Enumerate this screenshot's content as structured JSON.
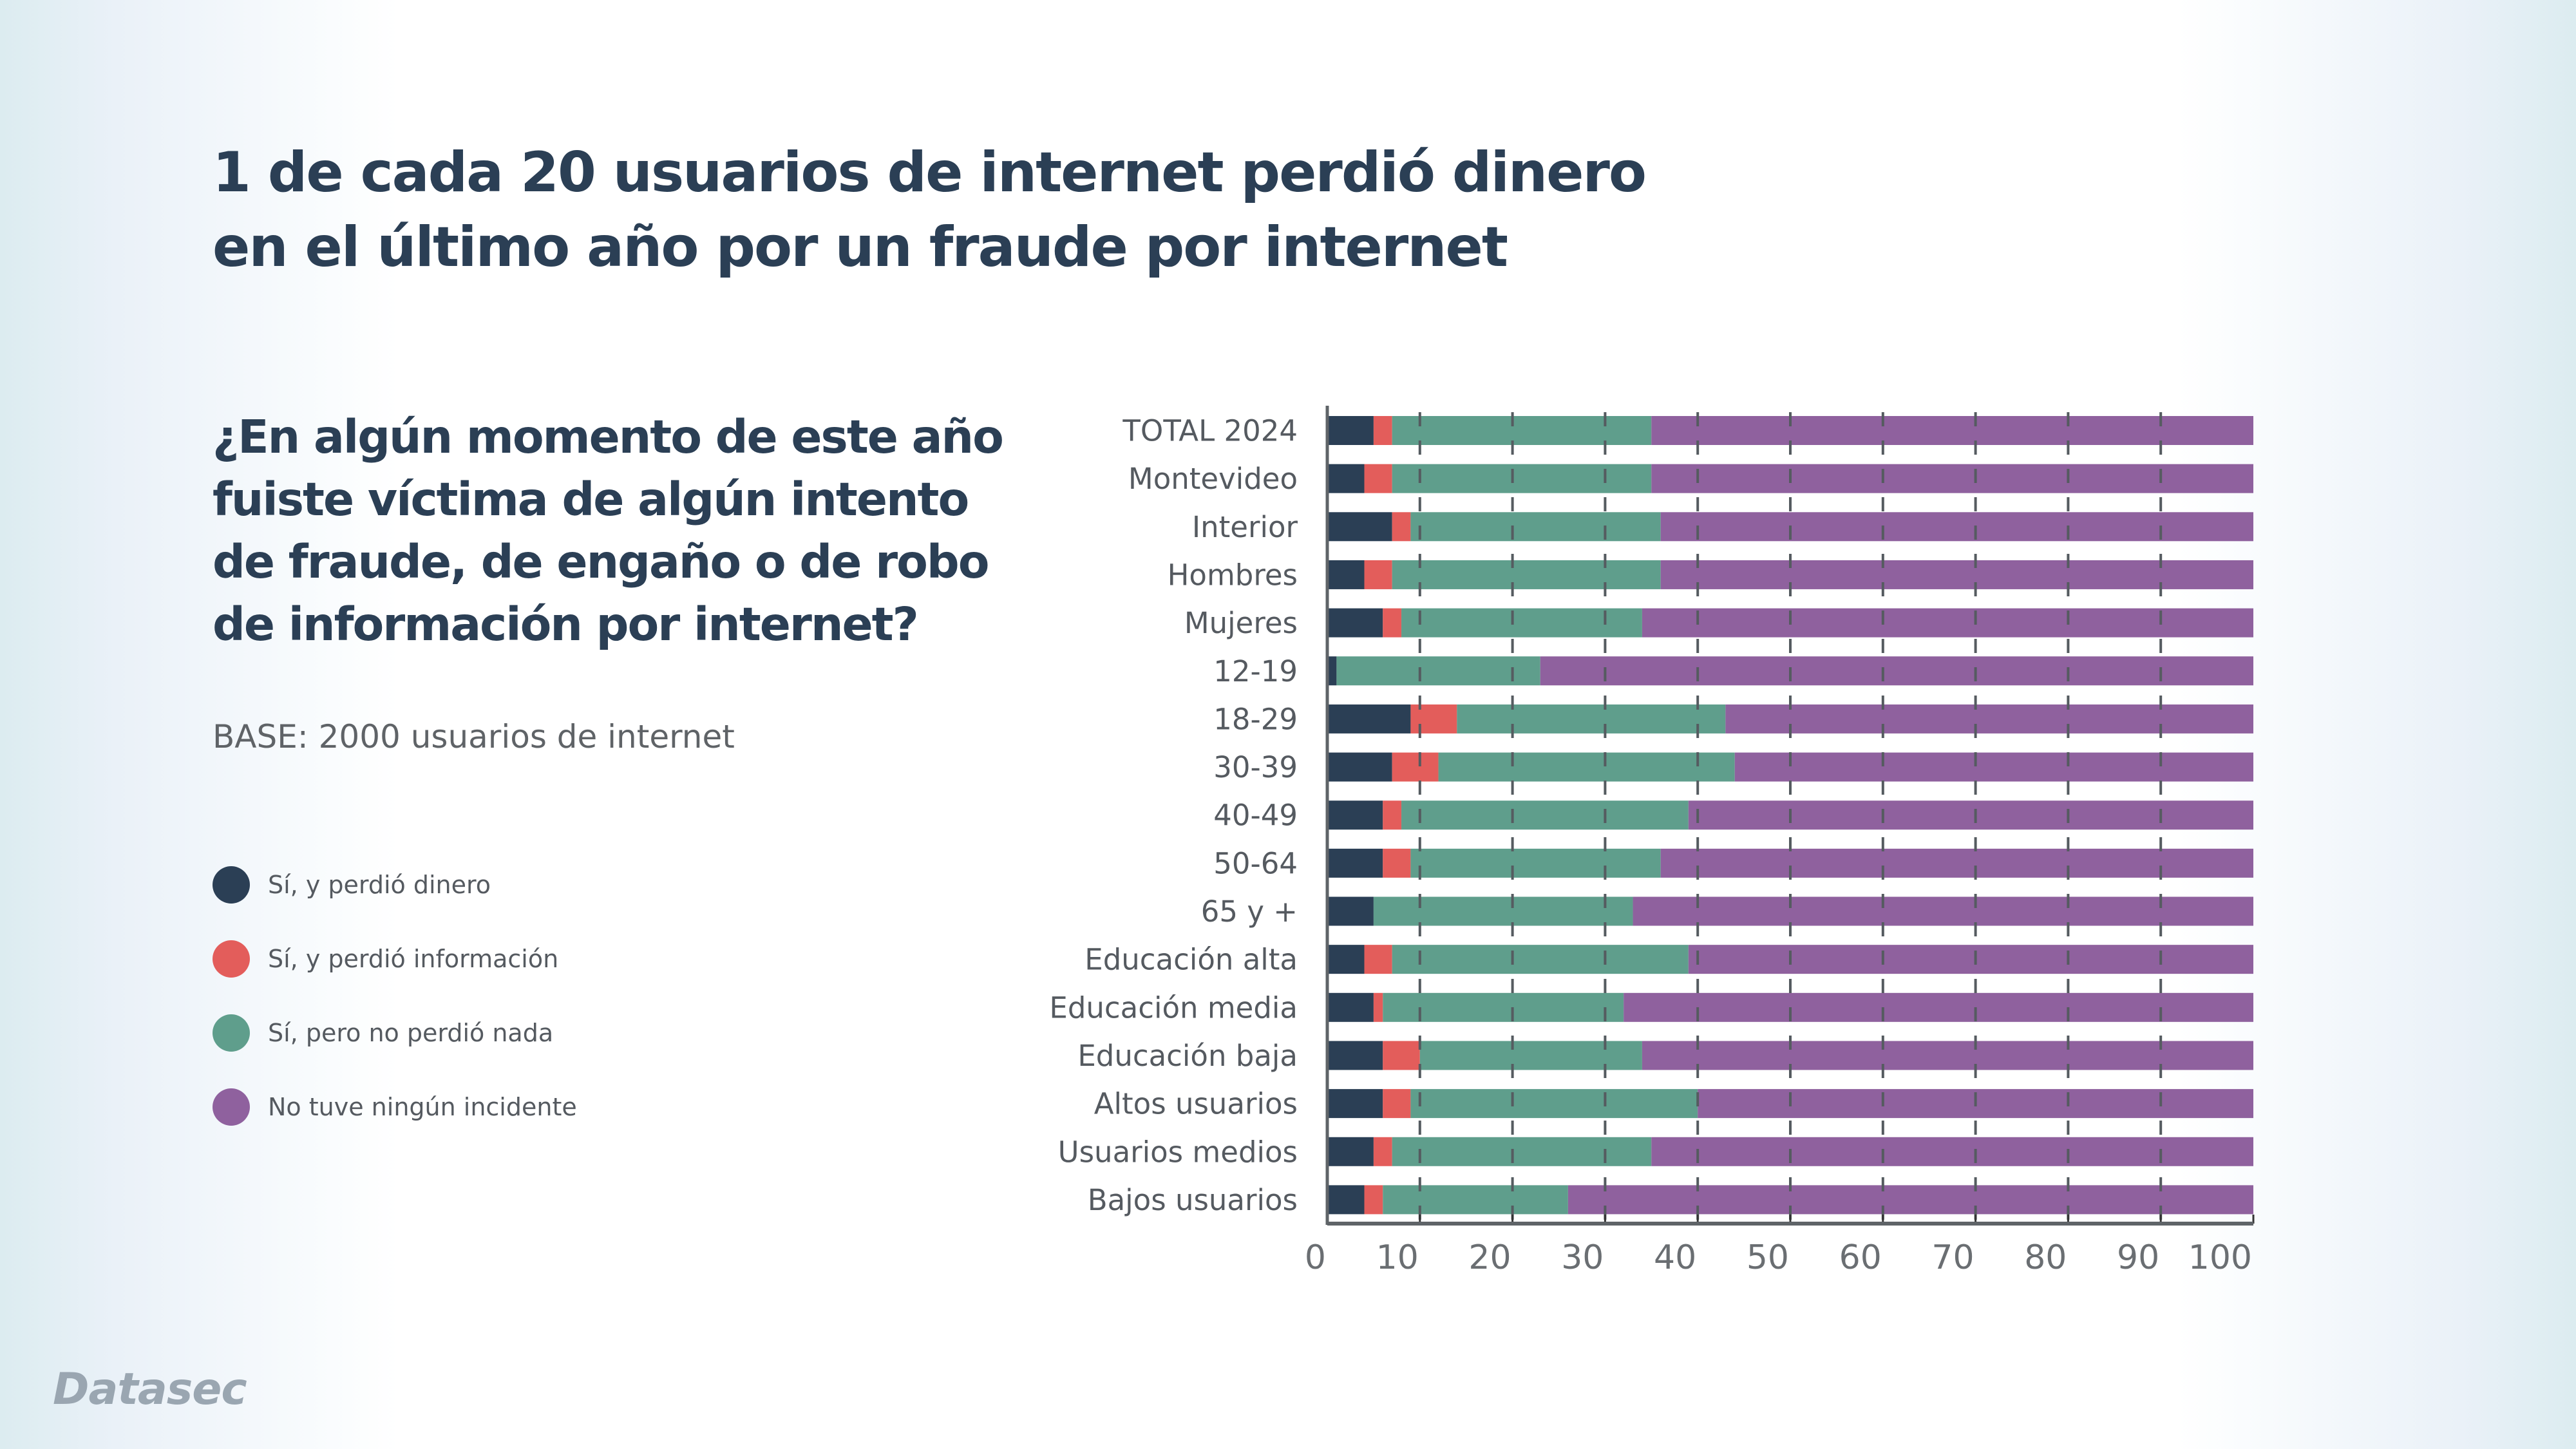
{
  "header": {
    "title_lines": [
      "1 de cada 20 usuarios de internet perdió dinero",
      "en el último año por un fraude por internet"
    ]
  },
  "question": {
    "lines": [
      "¿En algún momento de este año",
      "fuiste víctima de algún intento",
      "de fraude, de engaño o de robo",
      "de información por internet?"
    ]
  },
  "base_note": "BASE: 2000 usuarios de internet",
  "brand": {
    "logo_text": "Datasec"
  },
  "chart_data": {
    "type": "bar",
    "orientation": "horizontal",
    "stacked": true,
    "title": "¿En algún momento de este año fuiste víctima de algún intento de fraude, de engaño o de robo de información por internet?",
    "xlabel": "",
    "ylabel": "",
    "xlim": [
      0,
      100
    ],
    "xticks": [
      "0",
      "10",
      "20",
      "30",
      "40",
      "50",
      "60",
      "70",
      "80",
      "90",
      "100"
    ],
    "grid": "vertical dashed",
    "legend_position": "left",
    "categories": [
      "TOTAL 2024",
      "Montevideo",
      "Interior",
      "Hombres",
      "Mujeres",
      "12-19",
      "18-29",
      "30-39",
      "40-49",
      "50-64",
      "65 y +",
      "Educación alta",
      "Educación media",
      "Educación baja",
      "Altos usuarios",
      "Usuarios medios",
      "Bajos usuarios"
    ],
    "series": [
      {
        "name": "Sí, y perdió dinero",
        "color": "#2b3f55",
        "values": [
          5,
          4,
          7,
          4,
          6,
          1,
          9,
          7,
          6,
          6,
          5,
          4,
          5,
          6,
          6,
          5,
          4
        ]
      },
      {
        "name": "Sí, y perdió información",
        "color": "#e35d5b",
        "values": [
          2,
          3,
          2,
          3,
          2,
          0,
          5,
          5,
          2,
          3,
          0,
          3,
          1,
          4,
          3,
          2,
          2
        ]
      },
      {
        "name": "Sí, pero no perdió nada",
        "color": "#5f9e8c",
        "values": [
          28,
          28,
          27,
          29,
          26,
          22,
          29,
          32,
          31,
          27,
          28,
          32,
          26,
          24,
          31,
          28,
          20
        ]
      },
      {
        "name": "No tuve ningún incidente",
        "color": "#8f619e",
        "values": [
          65,
          65,
          64,
          64,
          66,
          77,
          57,
          56,
          61,
          64,
          67,
          61,
          68,
          66,
          60,
          65,
          74
        ]
      }
    ]
  }
}
